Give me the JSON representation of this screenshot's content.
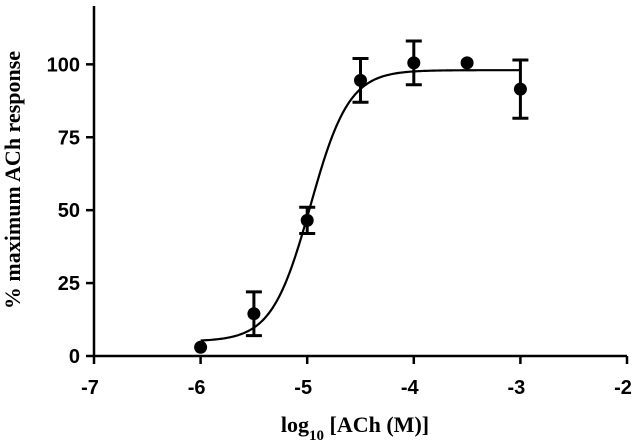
{
  "chart_data": {
    "type": "scatter",
    "xlabel": {
      "prefix": "log",
      "subscript": "10",
      "suffix": " [ACh (M)]"
    },
    "ylabel": "% maximum ACh response",
    "xlim": [
      -7,
      -2
    ],
    "ylim": [
      0,
      120
    ],
    "xticks": [
      -7,
      -6,
      -5,
      -4,
      -3,
      -2
    ],
    "yticks": [
      0,
      25,
      50,
      75,
      100
    ],
    "points": [
      {
        "x": -6.0,
        "y": 3,
        "err": null
      },
      {
        "x": -5.5,
        "y": 14.5,
        "err": 7.5
      },
      {
        "x": -5.0,
        "y": 46.5,
        "err": 4.5
      },
      {
        "x": -4.5,
        "y": 94.5,
        "err": 7.5
      },
      {
        "x": -4.0,
        "y": 100.5,
        "err": 7.5
      },
      {
        "x": -3.5,
        "y": 100.5,
        "err": null
      },
      {
        "x": -3.0,
        "y": 91.5,
        "err": 10
      }
    ],
    "fit": {
      "bottom": 5,
      "top": 98,
      "log_ec50": -4.97,
      "hill": 2.4,
      "x_range": [
        -6.0,
        -3.0
      ]
    }
  }
}
